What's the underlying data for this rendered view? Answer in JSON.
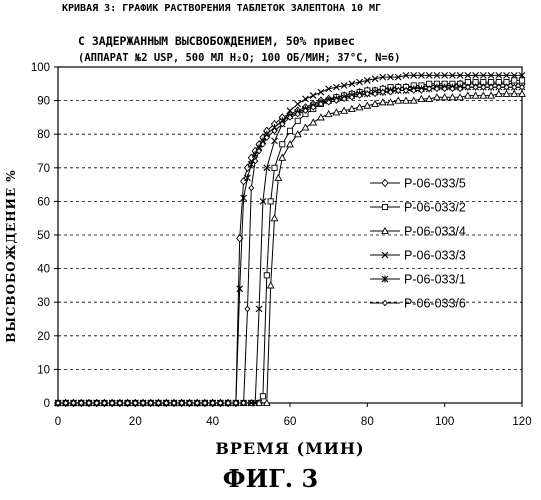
{
  "header": {
    "title_line1": "КРИВАЯ 3: ГРАФИК РАСТВОРЕНИЯ ТАБЛЕТОК ЗАЛЕПТОНА 10 МГ",
    "title_line2": "С ЗАДЕРЖАННЫМ ВЫСВОБОЖДЕНИЕМ, 50% привес",
    "subtitle": "(АППАРАТ №2 USP, 500 МЛ H₂O; 100 ОБ/МИН; 37°C, N=6)"
  },
  "figure_label": "ФИГ. 3",
  "chart_data": {
    "type": "line",
    "xlabel": "ВРЕМЯ (МИН)",
    "ylabel": "ВЫСВОБОЖДЕНИЕ %",
    "xlim": [
      0,
      120
    ],
    "ylim": [
      0,
      100
    ],
    "xticks": [
      0,
      20,
      40,
      60,
      80,
      100,
      120
    ],
    "yticks": [
      0,
      10,
      20,
      30,
      40,
      50,
      60,
      70,
      80,
      90,
      100
    ],
    "grid": "horizontal-dashed",
    "legend_position": "right",
    "series": [
      {
        "name": "P-06-033/5",
        "marker": "diamond",
        "x": [
          0,
          2,
          4,
          6,
          8,
          10,
          12,
          14,
          16,
          18,
          20,
          22,
          24,
          26,
          28,
          30,
          32,
          34,
          36,
          38,
          40,
          42,
          44,
          46,
          47,
          48,
          49,
          50,
          51,
          52,
          53,
          54,
          56,
          58,
          60,
          62,
          64,
          66,
          68,
          70,
          72,
          74,
          76,
          78,
          80,
          82,
          84,
          86,
          88,
          90,
          92,
          94,
          96,
          98,
          100,
          102,
          104,
          106,
          108,
          110,
          112,
          114,
          116,
          118,
          120
        ],
        "y": [
          0,
          0,
          0,
          0,
          0,
          0,
          0,
          0,
          0,
          0,
          0,
          0,
          0,
          0,
          0,
          0,
          0,
          0,
          0,
          0,
          0,
          0,
          0,
          0,
          49,
          66,
          70,
          73,
          75,
          77,
          79,
          81,
          83,
          85,
          86,
          87,
          88,
          89,
          90,
          90.5,
          91,
          91.5,
          92,
          92.5,
          93,
          93,
          93.5,
          93.5,
          94,
          94,
          94,
          94,
          94.5,
          94.5,
          94.5,
          94.5,
          95,
          95,
          95,
          95,
          95,
          95,
          95,
          95,
          95
        ]
      },
      {
        "name": "P-06-033/2",
        "marker": "square",
        "x": [
          0,
          2,
          4,
          6,
          8,
          10,
          12,
          14,
          16,
          18,
          20,
          22,
          24,
          26,
          28,
          30,
          32,
          34,
          36,
          38,
          40,
          42,
          44,
          46,
          48,
          50,
          52,
          53,
          54,
          55,
          56,
          58,
          60,
          62,
          64,
          66,
          68,
          70,
          72,
          74,
          76,
          78,
          80,
          82,
          84,
          86,
          88,
          90,
          92,
          94,
          96,
          98,
          100,
          102,
          104,
          106,
          108,
          110,
          112,
          114,
          116,
          118,
          120
        ],
        "y": [
          0,
          0,
          0,
          0,
          0,
          0,
          0,
          0,
          0,
          0,
          0,
          0,
          0,
          0,
          0,
          0,
          0,
          0,
          0,
          0,
          0,
          0,
          0,
          0,
          0,
          0,
          0,
          2,
          38,
          60,
          70,
          77,
          81,
          84,
          86,
          87.5,
          89,
          90,
          91,
          91.5,
          92,
          92.5,
          93,
          93,
          93.5,
          94,
          94,
          94,
          94.5,
          94.5,
          95,
          95,
          95,
          95,
          95,
          95.5,
          95.5,
          95.5,
          95.5,
          95.5,
          95.5,
          96,
          96
        ]
      },
      {
        "name": "P-06-033/4",
        "marker": "triangle",
        "x": [
          0,
          2,
          4,
          6,
          8,
          10,
          12,
          14,
          16,
          18,
          20,
          22,
          24,
          26,
          28,
          30,
          32,
          34,
          36,
          38,
          40,
          42,
          44,
          46,
          48,
          50,
          52,
          54,
          55,
          56,
          57,
          58,
          60,
          62,
          64,
          66,
          68,
          70,
          72,
          74,
          76,
          78,
          80,
          82,
          84,
          86,
          88,
          90,
          92,
          94,
          96,
          98,
          100,
          102,
          104,
          106,
          108,
          110,
          112,
          114,
          116,
          118,
          120
        ],
        "y": [
          0,
          0,
          0,
          0,
          0,
          0,
          0,
          0,
          0,
          0,
          0,
          0,
          0,
          0,
          0,
          0,
          0,
          0,
          0,
          0,
          0,
          0,
          0,
          0,
          0,
          0,
          0,
          0,
          35,
          55,
          67,
          73,
          77,
          80,
          82,
          83.5,
          85,
          86,
          86.5,
          87,
          87.5,
          88,
          88.5,
          89,
          89.5,
          89.5,
          90,
          90,
          90,
          90.5,
          90.5,
          91,
          91,
          91,
          91,
          91.5,
          91.5,
          91.5,
          91.5,
          92,
          92,
          92,
          92
        ]
      },
      {
        "name": "P-06-033/3",
        "marker": "x",
        "x": [
          0,
          2,
          4,
          6,
          8,
          10,
          12,
          14,
          16,
          18,
          20,
          22,
          24,
          26,
          28,
          30,
          32,
          34,
          36,
          38,
          40,
          42,
          44,
          46,
          48,
          50,
          51,
          52,
          53,
          54,
          56,
          58,
          60,
          62,
          64,
          66,
          68,
          70,
          72,
          74,
          76,
          78,
          80,
          82,
          84,
          86,
          88,
          90,
          92,
          94,
          96,
          98,
          100,
          102,
          104,
          106,
          108,
          110,
          112,
          114,
          116,
          118,
          120
        ],
        "y": [
          0,
          0,
          0,
          0,
          0,
          0,
          0,
          0,
          0,
          0,
          0,
          0,
          0,
          0,
          0,
          0,
          0,
          0,
          0,
          0,
          0,
          0,
          0,
          0,
          0,
          0,
          0,
          28,
          60,
          70,
          78,
          83,
          87,
          89,
          90.5,
          91.5,
          92.5,
          93.5,
          94,
          94.5,
          95,
          95.5,
          96,
          96.5,
          97,
          97,
          97,
          97.5,
          97.5,
          97.5,
          97.5,
          97.5,
          97.5,
          97.5,
          97.5,
          97.5,
          97.5,
          97.5,
          97.5,
          97.5,
          97.5,
          97.5,
          97.5
        ]
      },
      {
        "name": "P-06-033/1",
        "marker": "star",
        "x": [
          0,
          2,
          4,
          6,
          8,
          10,
          12,
          14,
          16,
          18,
          20,
          22,
          24,
          26,
          28,
          30,
          32,
          34,
          36,
          38,
          40,
          42,
          44,
          46,
          47,
          48,
          49,
          50,
          51,
          52,
          53,
          54,
          56,
          58,
          60,
          62,
          64,
          66,
          68,
          70,
          72,
          74,
          76,
          78,
          80,
          82,
          84,
          86,
          88,
          90,
          92,
          94,
          96,
          98,
          100,
          102,
          104,
          106,
          108,
          110,
          112,
          114,
          116,
          118,
          120
        ],
        "y": [
          0,
          0,
          0,
          0,
          0,
          0,
          0,
          0,
          0,
          0,
          0,
          0,
          0,
          0,
          0,
          0,
          0,
          0,
          0,
          0,
          0,
          0,
          0,
          0,
          34,
          61,
          67,
          71,
          74,
          76,
          78,
          80,
          82,
          84,
          85.5,
          86.5,
          87.5,
          88.5,
          89.5,
          90,
          90.5,
          91,
          91.5,
          92,
          92,
          92.5,
          92.5,
          93,
          93,
          93,
          93.5,
          93.5,
          93.5,
          94,
          94,
          94,
          94,
          94,
          94,
          94,
          94,
          94,
          94,
          94,
          94
        ]
      },
      {
        "name": "P-06-033/6",
        "marker": "diamond-small",
        "x": [
          0,
          2,
          4,
          6,
          8,
          10,
          12,
          14,
          16,
          18,
          20,
          22,
          24,
          26,
          28,
          30,
          32,
          34,
          36,
          38,
          40,
          42,
          44,
          46,
          48,
          49,
          50,
          51,
          52,
          53,
          54,
          56,
          58,
          60,
          62,
          64,
          66,
          68,
          70,
          72,
          74,
          76,
          78,
          80,
          82,
          84,
          86,
          88,
          90,
          92,
          94,
          96,
          98,
          100,
          102,
          104,
          106,
          108,
          110,
          112,
          114,
          116,
          118,
          120
        ],
        "y": [
          0,
          0,
          0,
          0,
          0,
          0,
          0,
          0,
          0,
          0,
          0,
          0,
          0,
          0,
          0,
          0,
          0,
          0,
          0,
          0,
          0,
          0,
          0,
          0,
          0,
          28,
          64,
          72,
          75,
          77,
          79,
          81,
          83,
          85,
          86,
          87,
          88,
          89,
          89.5,
          90,
          90.5,
          91,
          91.5,
          92,
          92,
          92.5,
          92.5,
          93,
          93,
          93,
          93,
          93.5,
          93.5,
          93.5,
          93.5,
          93.5,
          94,
          94,
          94,
          94,
          94,
          94,
          94,
          94
        ]
      }
    ]
  }
}
